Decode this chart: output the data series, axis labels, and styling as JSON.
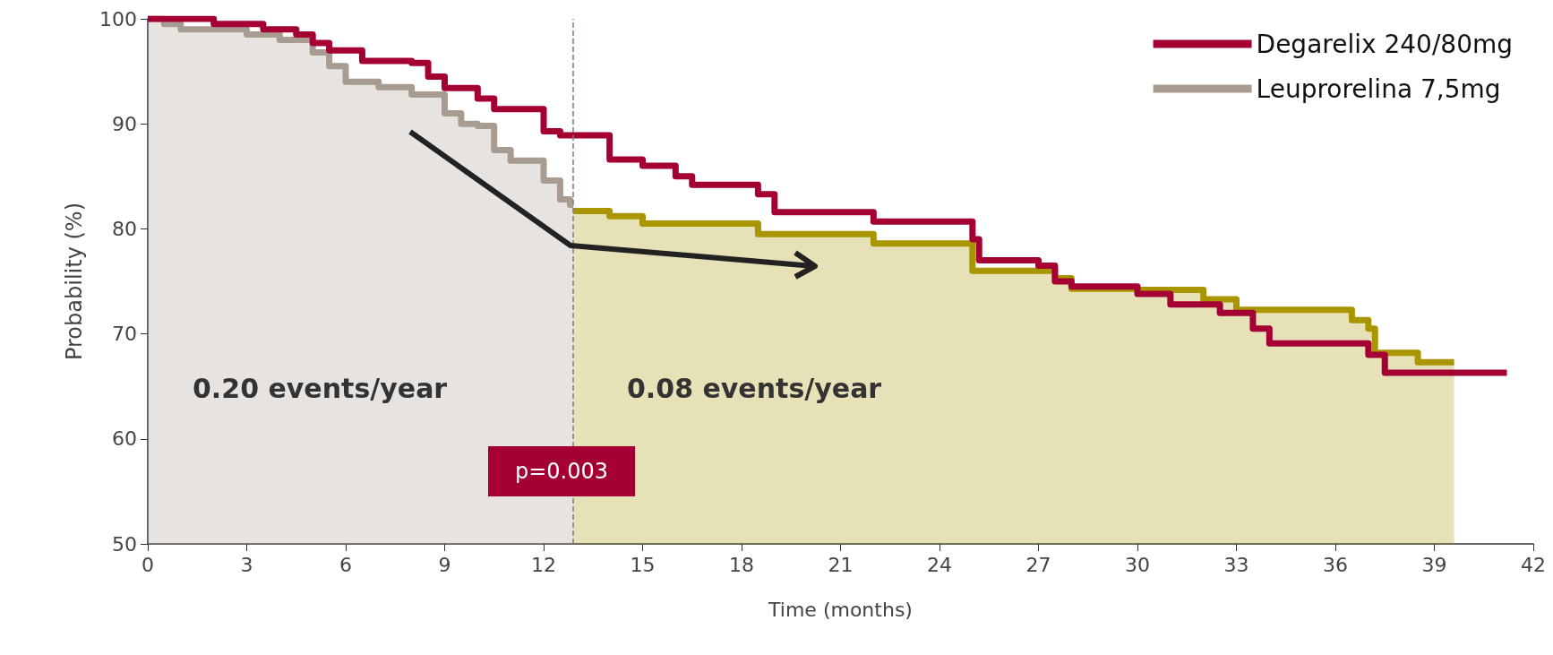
{
  "chart_data": {
    "type": "step",
    "xlabel": "Time (months)",
    "ylabel": "Probability (%)",
    "xlim": [
      0,
      42
    ],
    "xticks": [
      0,
      3,
      6,
      9,
      12,
      15,
      18,
      21,
      24,
      27,
      30,
      33,
      36,
      39,
      42
    ],
    "ylim": [
      50,
      100
    ],
    "yticks": [
      50,
      60,
      70,
      80,
      90,
      100
    ],
    "grid": false,
    "legend": "top right",
    "marker": "none",
    "series": [
      {
        "name": "Degarelix 240/80mg",
        "color": "#a50034",
        "x": [
          0,
          2,
          3.5,
          4.5,
          5,
          5.5,
          6.5,
          8,
          8.5,
          9,
          10,
          10.5,
          12,
          12.5,
          14,
          15,
          16,
          16.5,
          18.5,
          19,
          22,
          25,
          25.2,
          27,
          27.5,
          28,
          30,
          31,
          32.5,
          33.5,
          34,
          37,
          37.5,
          41.2
        ],
        "values": [
          100,
          99.5,
          99,
          98.5,
          97.7,
          97,
          96,
          95.8,
          94.5,
          93.4,
          92.4,
          91.4,
          89.3,
          88.9,
          86.6,
          86,
          85,
          84.2,
          83.3,
          81.6,
          80.7,
          79,
          77,
          76.5,
          75,
          74.5,
          73.8,
          72.8,
          72,
          70.5,
          69.1,
          68,
          66.3,
          66.3
        ]
      },
      {
        "name": "Leuprorelina 7,5mg",
        "type": "area",
        "color": "#a89b90",
        "x": [
          0,
          0.5,
          0.5,
          1,
          1,
          3,
          3,
          4,
          4,
          5,
          5,
          5.5,
          5.5,
          6,
          6,
          7,
          7,
          8,
          8,
          9,
          9,
          9.5,
          9.5,
          10,
          10,
          10.5,
          10.5,
          11,
          11,
          12,
          12,
          12.5,
          12.5,
          12.8,
          12.8,
          12.9
        ],
        "values": [
          100,
          100,
          99.5,
          99.5,
          99,
          99,
          98.5,
          98.5,
          98,
          98,
          96.8,
          96.8,
          95.5,
          95.5,
          94,
          94,
          93.5,
          93.5,
          92.8,
          92.8,
          91,
          91,
          90,
          90,
          89.8,
          89.8,
          87.5,
          87.5,
          86.5,
          86.5,
          84.6,
          84.6,
          82.8,
          82.8,
          82.3,
          82.3
        ]
      },
      {
        "type": "area",
        "color": "#a89500",
        "x": [
          12.9,
          14,
          14,
          15,
          15,
          18.5,
          18.5,
          22,
          22,
          25,
          25,
          27.5,
          27.5,
          28,
          28,
          30,
          30,
          32,
          32,
          33,
          33,
          36.5,
          36.5,
          37,
          37,
          37.2,
          37.2,
          38.5,
          38.5,
          39.6
        ],
        "values": [
          81.7,
          81.7,
          81.2,
          81.2,
          80.5,
          80.5,
          79.5,
          79.5,
          78.6,
          78.6,
          76,
          76,
          75.3,
          75.3,
          74.3,
          74.3,
          74.2,
          74.2,
          73.3,
          73.3,
          72.3,
          72.3,
          71.3,
          71.3,
          70.5,
          70.5,
          68.2,
          68.2,
          67.3,
          67.3
        ]
      }
    ],
    "ref_lines": [
      {
        "axis": "x",
        "value": 12.9,
        "color": "#8a7a70",
        "line_style": "dashed"
      }
    ],
    "annotations": [
      "0.20 events/year",
      "0.08 events/year",
      "p=0.003"
    ]
  }
}
